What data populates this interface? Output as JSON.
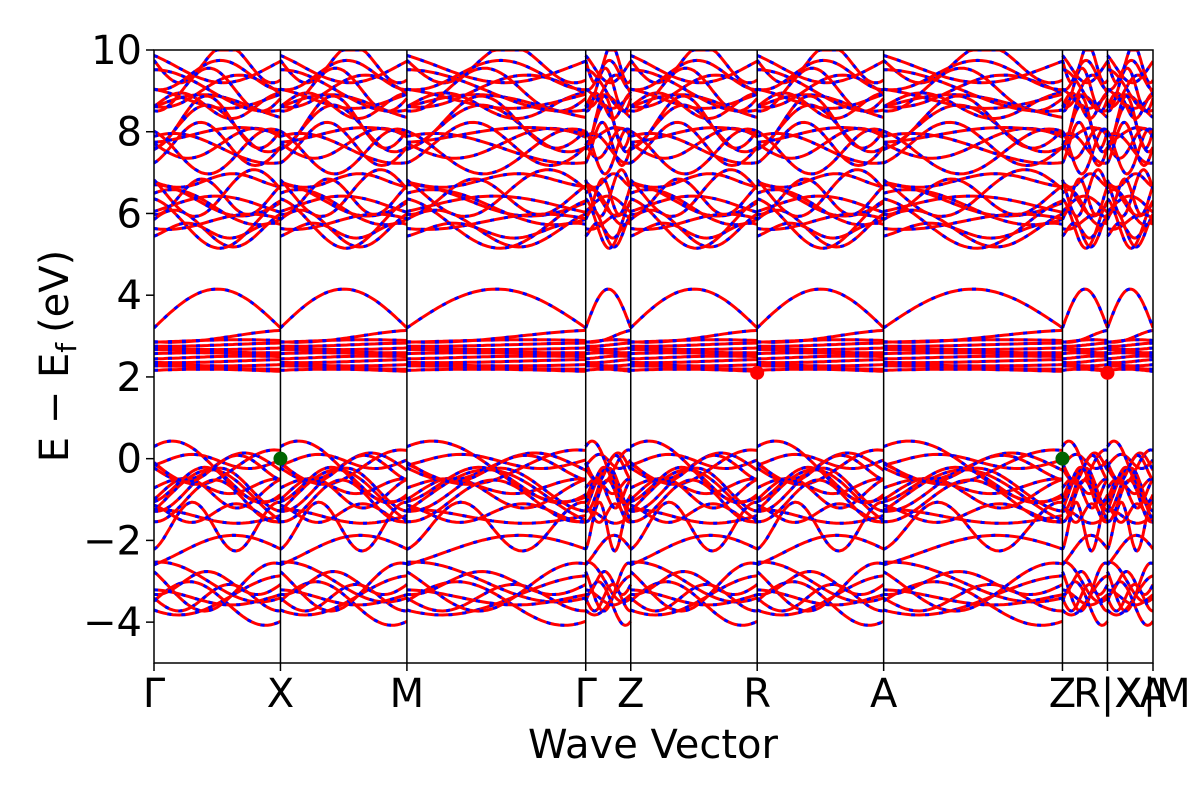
{
  "chart_data": {
    "type": "line",
    "title": "",
    "xlabel": "Wave Vector",
    "ylabel_main": "E − E",
    "ylabel_sub": "f",
    "ylabel_unit": "(eV)",
    "ylim": [
      -5,
      10
    ],
    "yticks": [
      -4,
      -2,
      0,
      2,
      4,
      6,
      8,
      10
    ],
    "ytick_labels": [
      "−4",
      "−2",
      "0",
      "2",
      "4",
      "6",
      "8",
      "10"
    ],
    "kpath": [
      {
        "label": "Γ",
        "x": 0
      },
      {
        "label": "X",
        "x": 1
      },
      {
        "label": "M",
        "x": 2
      },
      {
        "label": "Γ",
        "x": 3.414
      },
      {
        "label": "Z",
        "x": 3.77
      },
      {
        "label": "R",
        "x": 4.77
      },
      {
        "label": "A",
        "x": 5.77
      },
      {
        "label": "Z",
        "x": 7.184
      },
      {
        "label": "R|X",
        "x": 7.54
      },
      {
        "label": "X|M",
        "x": 7.9
      },
      {
        "label": "A",
        "x": 7.9
      }
    ],
    "xlim": [
      0,
      7.9
    ],
    "band_colors": {
      "line": "#ff0000",
      "dash": "#0000ff"
    },
    "vbm_markers": [
      {
        "x": 1,
        "y": 0
      },
      {
        "x": 7.184,
        "y": 0
      }
    ],
    "cbm_markers": [
      {
        "x": 4.77,
        "y": 2.1
      },
      {
        "x": 7.54,
        "y": 2.1
      }
    ],
    "marker_colors": {
      "vbm": "#006400",
      "cbm": "#ff0000"
    }
  }
}
